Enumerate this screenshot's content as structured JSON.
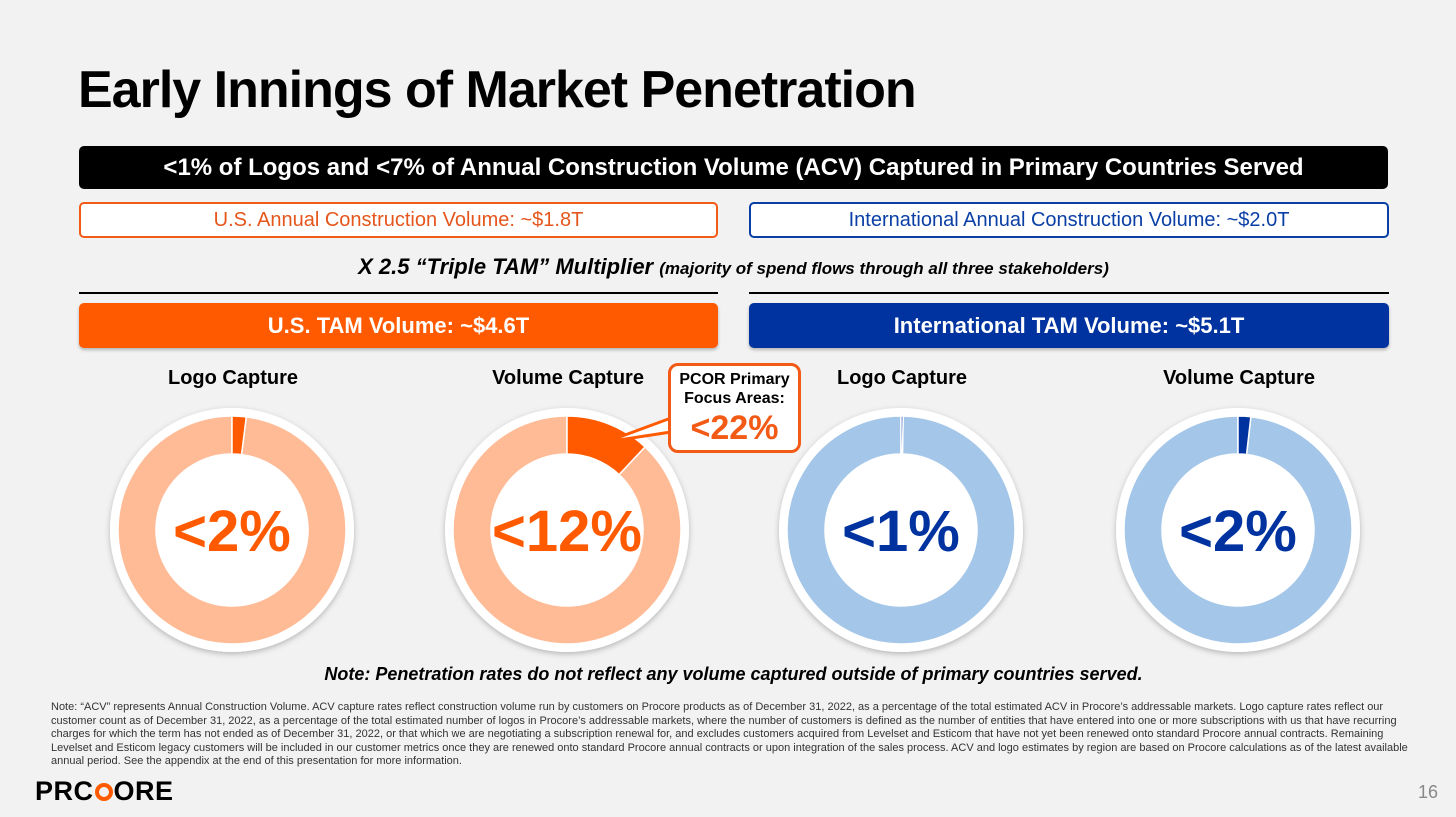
{
  "slide": {
    "title": "Early Innings of Market Penetration",
    "banner": "<1% of Logos and <7% of Annual Construction Volume (ACV) Captured in Primary Countries Served",
    "us_volume": "U.S. Annual Construction Volume: ~$1.8T",
    "intl_volume": "International Annual Construction Volume: ~$2.0T",
    "multiplier_main": "X 2.5 “Triple TAM” Multiplier",
    "multiplier_note": "(majority of spend flows through all three stakeholders)",
    "us_tam": "U.S. TAM Volume: ~$4.6T",
    "intl_tam": "International TAM Volume: ~$5.1T",
    "callout_title": "PCOR Primary Focus Areas:",
    "callout_value": "<22%",
    "note": "Note: Penetration rates do not reflect any volume captured outside of primary countries served.",
    "footnote": "Note: “ACV” represents Annual Construction Volume. ACV capture rates reflect construction volume run by customers on Procore products as of December 31, 2022, as a percentage of the total estimated ACV in Procore’s addressable markets. Logo capture rates reflect our customer count as of December 31, 2022, as a percentage of the total estimated number of logos in Procore’s addressable markets, where the number of customers is defined as the number of entities that have entered into one or more subscriptions with us that have recurring charges for which the term has not ended as of December 31, 2022, or that which we are negotiating a subscription renewal for, and excludes customers acquired from Levelset and Esticom that have not yet been renewed onto standard Procore annual contracts. Remaining Levelset and Esticom legacy customers will be included in our customer metrics once they are renewed onto standard Procore annual contracts or upon integration of the sales process. ACV and logo estimates by region are based on Procore calculations as of the latest available annual period. See the appendix at the end of this presentation for more information.",
    "logo_part1": "PR",
    "logo_part2": "C",
    "logo_part3": "ORE",
    "page_number": "16"
  },
  "colors": {
    "us_accent": "#ff5a00",
    "us_light": "#ffbb96",
    "intl_accent": "#0033a0",
    "intl_light": "#a4c6e8"
  },
  "chart_data": [
    {
      "type": "pie",
      "title": "Logo Capture",
      "region": "U.S.",
      "label": "<2%",
      "values": [
        2,
        98
      ],
      "series": [
        "captured",
        "remaining"
      ]
    },
    {
      "type": "pie",
      "title": "Volume Capture",
      "region": "U.S.",
      "label": "<12%",
      "values": [
        12,
        88
      ],
      "series": [
        "captured",
        "remaining"
      ]
    },
    {
      "type": "pie",
      "title": "Logo Capture",
      "region": "International",
      "label": "<1%",
      "values": [
        0.3,
        99.7
      ],
      "series": [
        "captured",
        "remaining"
      ]
    },
    {
      "type": "pie",
      "title": "Volume Capture",
      "region": "International",
      "label": "<2%",
      "values": [
        1.8,
        98.2
      ],
      "series": [
        "captured",
        "remaining"
      ]
    }
  ]
}
